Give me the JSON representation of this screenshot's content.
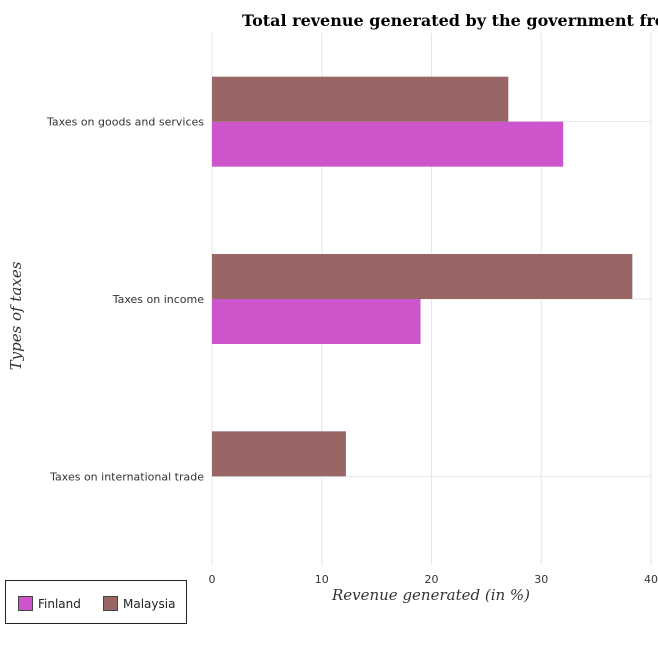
{
  "chart_data": {
    "type": "bar",
    "orientation": "horizontal",
    "title": "Total revenue generated by the government from diff",
    "xlabel": "Revenue generated (in %)",
    "ylabel": "Types of taxes",
    "categories": [
      "Taxes on goods and services",
      "Taxes on income",
      "Taxes on international trade"
    ],
    "series": [
      {
        "name": "Finland",
        "color": "#cc55cc",
        "values": [
          32.0,
          19.0,
          0.0
        ]
      },
      {
        "name": "Malaysia",
        "color": "#996666",
        "values": [
          27.0,
          38.3,
          12.2
        ]
      }
    ],
    "xlim": [
      0,
      40
    ],
    "xticks": [
      0,
      10,
      20,
      30,
      40
    ],
    "grid": true,
    "legend_position": "bottom-left"
  }
}
